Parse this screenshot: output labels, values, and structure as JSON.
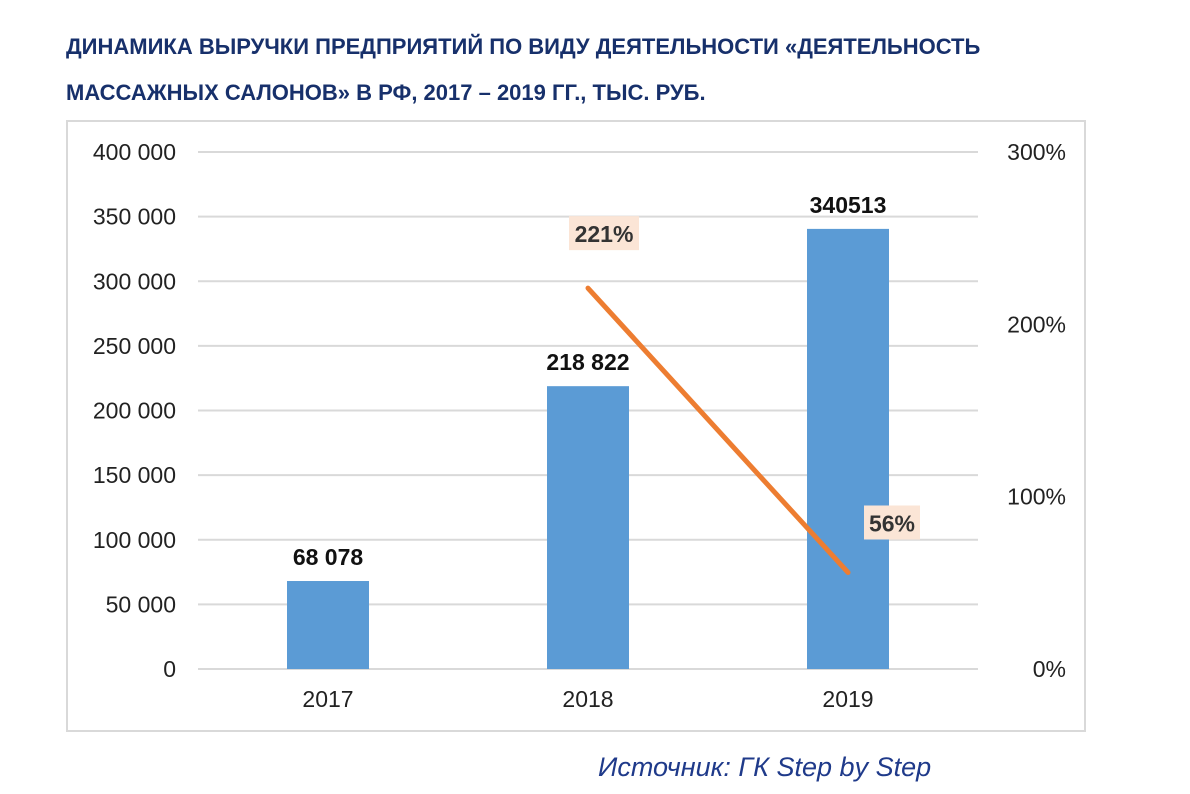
{
  "title": {
    "line1": "ДИНАМИКА ВЫРУЧКИ ПРЕДПРИЯТИЙ ПО ВИДУ ДЕЯТЕЛЬНОСТИ «ДЕЯТЕЛЬНОСТЬ",
    "line2": "МАССАЖНЫХ САЛОНОВ» В РФ, 2017 – 2019 ГГ., ТЫС. РУБ."
  },
  "source": "Источник: ГК Step by Step",
  "colors": {
    "bar": "#5b9bd5",
    "line": "#ed7d31",
    "grid": "#d9d9d9",
    "title": "#17306b",
    "label_bg": "#fbe5d6"
  },
  "chart_data": {
    "type": "bar",
    "categories": [
      "2017",
      "2018",
      "2019"
    ],
    "series": [
      {
        "type": "bar",
        "axis": "left",
        "values": [
          68078,
          218822,
          340513
        ],
        "labels": [
          "68 078",
          "218 822",
          "340513"
        ]
      },
      {
        "type": "line",
        "axis": "right",
        "values": [
          null,
          221,
          56
        ],
        "labels": [
          "",
          "221%",
          "56%"
        ]
      }
    ],
    "ylim": [
      0,
      400000
    ],
    "y_ticks": [
      0,
      50000,
      100000,
      150000,
      200000,
      250000,
      300000,
      350000,
      400000
    ],
    "y_tick_labels": [
      "0",
      "50 000",
      "100 000",
      "150 000",
      "200 000",
      "250 000",
      "300 000",
      "350 000",
      "400 000"
    ],
    "y2lim": [
      0,
      300
    ],
    "y2_ticks": [
      0,
      100,
      200,
      300
    ],
    "y2_tick_labels": [
      "0%",
      "100%",
      "200%",
      "300%"
    ],
    "grid": true
  }
}
